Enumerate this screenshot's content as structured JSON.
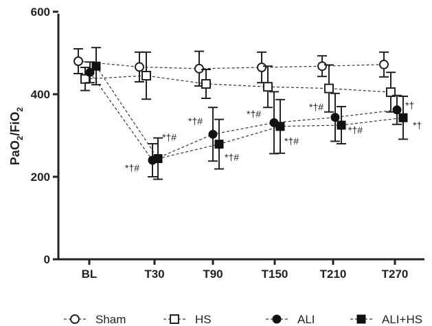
{
  "chart_data": {
    "type": "line",
    "ylabel_main": "PaO",
    "ylabel_sub1": "2",
    "ylabel_mid": "/FiO",
    "ylabel_sub2": "2",
    "ylim": [
      0,
      600
    ],
    "yticks": [
      0,
      200,
      400,
      600
    ],
    "categories": [
      "BL",
      "T30",
      "T90",
      "T150",
      "T210",
      "T270"
    ],
    "grid": false,
    "legend_position": "bottom",
    "series": [
      {
        "name": "Sham",
        "marker": "open-circle",
        "values": [
          480,
          466,
          462,
          465,
          468,
          472
        ],
        "err": [
          30,
          36,
          42,
          37,
          25,
          30
        ]
      },
      {
        "name": "HS",
        "marker": "open-square",
        "values": [
          437,
          445,
          425,
          418,
          414,
          405
        ],
        "err": [
          28,
          57,
          35,
          50,
          57,
          48
        ]
      },
      {
        "name": "ALI",
        "marker": "filled-circle",
        "values": [
          453,
          240,
          303,
          331,
          344,
          362
        ],
        "err": [
          25,
          40,
          65,
          75,
          58,
          35
        ]
      },
      {
        "name": "ALI+HS",
        "marker": "filled-square",
        "values": [
          468,
          244,
          279,
          322,
          325,
          343
        ],
        "err": [
          45,
          50,
          60,
          65,
          45,
          52
        ]
      }
    ],
    "annotations": [
      {
        "text": "*†#",
        "series": "ALI",
        "category": "T30"
      },
      {
        "text": "*†#",
        "series": "ALI+HS",
        "category": "T30"
      },
      {
        "text": "*†#",
        "series": "ALI",
        "category": "T90"
      },
      {
        "text": "*†#",
        "series": "ALI+HS",
        "category": "T90"
      },
      {
        "text": "*†#",
        "series": "ALI",
        "category": "T150"
      },
      {
        "text": "*†#",
        "series": "ALI+HS",
        "category": "T150"
      },
      {
        "text": "*†#",
        "series": "ALI",
        "category": "T210"
      },
      {
        "text": "*†#",
        "series": "ALI+HS",
        "category": "T210"
      },
      {
        "text": "*†",
        "series": "ALI",
        "category": "T270"
      },
      {
        "text": "*†",
        "series": "ALI+HS",
        "category": "T270"
      }
    ]
  }
}
